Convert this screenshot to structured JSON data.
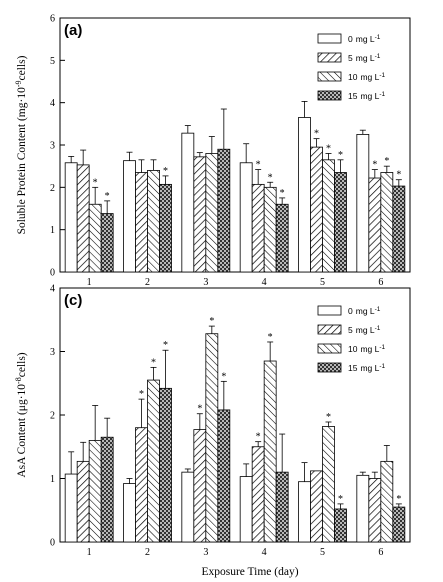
{
  "figure_xlabel": "Exposure Time (day)",
  "legend_unit": "mg L",
  "legend_unit_exp": "-1",
  "chart_data": [
    {
      "type": "bar",
      "panel_label": "(a)",
      "ylabel_parts": [
        "Soluble Protein Content (mg·10",
        "-9",
        "cells)"
      ],
      "categories": [
        "1",
        "2",
        "3",
        "4",
        "5",
        "6"
      ],
      "ylim": [
        0,
        6
      ],
      "yticks": [
        0,
        1,
        2,
        3,
        4,
        5,
        6
      ],
      "legend_position": "top-right",
      "grid": false,
      "series": [
        {
          "name": "0",
          "values": [
            2.58,
            2.63,
            3.28,
            2.58,
            3.65,
            3.25
          ],
          "errors": [
            0.15,
            0.2,
            0.18,
            0.45,
            0.38,
            0.1
          ],
          "significant": [
            false,
            false,
            false,
            false,
            false,
            false
          ]
        },
        {
          "name": "5",
          "values": [
            2.53,
            2.35,
            2.72,
            2.07,
            2.95,
            2.22
          ],
          "errors": [
            0.35,
            0.3,
            0.1,
            0.35,
            0.2,
            0.2
          ],
          "significant": [
            false,
            false,
            false,
            true,
            true,
            true
          ]
        },
        {
          "name": "10",
          "values": [
            1.6,
            2.4,
            2.8,
            2.0,
            2.65,
            2.35
          ],
          "errors": [
            0.4,
            0.25,
            0.4,
            0.12,
            0.15,
            0.15
          ],
          "significant": [
            true,
            false,
            false,
            true,
            true,
            true
          ]
        },
        {
          "name": "15",
          "values": [
            1.38,
            2.07,
            2.9,
            1.6,
            2.35,
            2.03
          ],
          "errors": [
            0.3,
            0.2,
            0.95,
            0.15,
            0.3,
            0.15
          ],
          "significant": [
            true,
            true,
            false,
            true,
            true,
            true
          ]
        }
      ]
    },
    {
      "type": "bar",
      "panel_label": "(c)",
      "ylabel_parts": [
        "AsA Content (μg·10",
        "-8",
        "cells)"
      ],
      "categories": [
        "1",
        "2",
        "3",
        "4",
        "5",
        "6"
      ],
      "ylim": [
        0,
        4
      ],
      "yticks": [
        0,
        1,
        2,
        3,
        4
      ],
      "legend_position": "top-right",
      "grid": false,
      "series": [
        {
          "name": "0",
          "values": [
            1.07,
            0.92,
            1.1,
            1.03,
            0.95,
            1.05
          ],
          "errors": [
            0.35,
            0.08,
            0.05,
            0.2,
            0.3,
            0.05
          ],
          "significant": [
            false,
            false,
            false,
            false,
            false,
            false
          ]
        },
        {
          "name": "5",
          "values": [
            1.27,
            1.8,
            1.77,
            1.5,
            1.12,
            1.0
          ],
          "errors": [
            0.3,
            0.45,
            0.25,
            0.08,
            0.0,
            0.1
          ],
          "significant": [
            false,
            true,
            true,
            true,
            false,
            false
          ]
        },
        {
          "name": "10",
          "values": [
            1.6,
            2.55,
            3.28,
            2.85,
            1.82,
            1.27
          ],
          "errors": [
            0.55,
            0.2,
            0.12,
            0.3,
            0.07,
            0.25
          ],
          "significant": [
            false,
            true,
            true,
            true,
            true,
            false
          ]
        },
        {
          "name": "15",
          "values": [
            1.65,
            2.42,
            2.08,
            1.1,
            0.52,
            0.55
          ],
          "errors": [
            0.3,
            0.6,
            0.45,
            0.6,
            0.08,
            0.05
          ],
          "significant": [
            false,
            true,
            true,
            false,
            true,
            true
          ]
        }
      ]
    }
  ]
}
